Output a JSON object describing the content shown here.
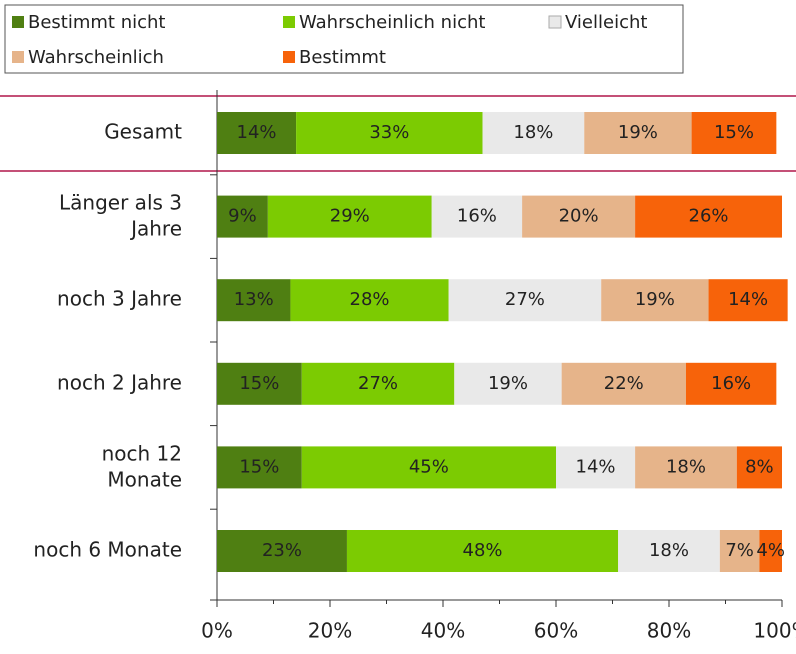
{
  "chart_data": {
    "type": "stacked-bar-horizontal",
    "categories": [
      "Gesamt",
      "Länger als 3\nJahre",
      "noch 3 Jahre",
      "noch 2 Jahre",
      "noch 12\nMonate",
      "noch 6 Monate"
    ],
    "series": [
      {
        "name": "Bestimmt nicht",
        "color": "#4f7f12",
        "label_color": "#ffffff",
        "values": [
          14,
          9,
          13,
          15,
          15,
          23
        ],
        "value_labels": [
          "14%",
          "9%",
          "13%",
          "15%",
          "15%",
          "23%"
        ]
      },
      {
        "name": "Wahrscheinlich nicht",
        "color": "#7ccb02",
        "label_color": "#2f4a08",
        "values": [
          33,
          29,
          28,
          27,
          45,
          48
        ],
        "value_labels": [
          "33%",
          "29%",
          "28%",
          "27%",
          "45%",
          "48%"
        ]
      },
      {
        "name": "Vielleicht",
        "color": "#e9e9e9",
        "label_color": "#333333",
        "values": [
          18,
          16,
          27,
          19,
          14,
          18
        ],
        "value_labels": [
          "18%",
          "16%",
          "27%",
          "19%",
          "14%",
          "18%"
        ]
      },
      {
        "name": "Wahrscheinlich",
        "color": "#e6b48a",
        "label_color": "#333333",
        "values": [
          19,
          20,
          19,
          22,
          18,
          7
        ],
        "value_labels": [
          "19%",
          "20%",
          "19%",
          "22%",
          "18%",
          "7%"
        ]
      },
      {
        "name": "Bestimmt",
        "color": "#f7630a",
        "label_color": "#9a1a00",
        "values": [
          15,
          26,
          14,
          16,
          8,
          4
        ],
        "value_labels": [
          "15%",
          "26%",
          "14%",
          "16%",
          "8%",
          "4%"
        ]
      }
    ],
    "xlim": [
      0,
      100
    ],
    "xticks": [
      {
        "value": 0,
        "label": "0%"
      },
      {
        "value": 20,
        "label": "20%"
      },
      {
        "value": 40,
        "label": "40%"
      },
      {
        "value": 60,
        "label": "60%"
      },
      {
        "value": 80,
        "label": "80%"
      },
      {
        "value": 100,
        "label": "100%"
      }
    ]
  }
}
